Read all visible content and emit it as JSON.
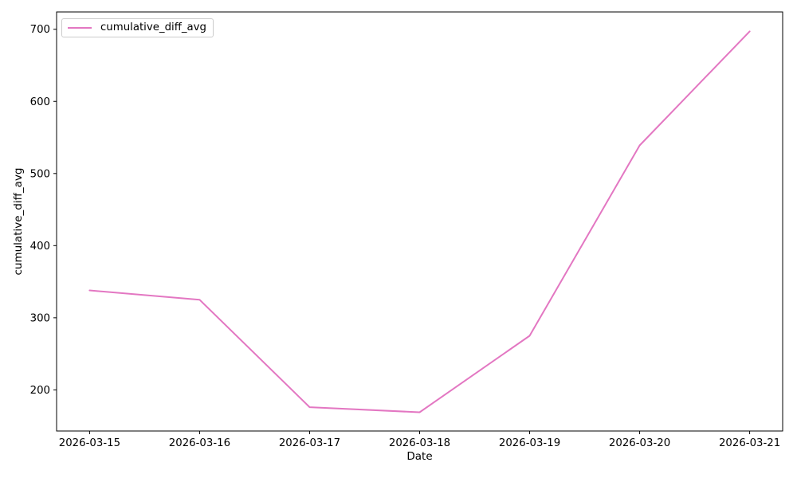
{
  "chart_data": {
    "type": "line",
    "title": "",
    "xlabel": "Date",
    "ylabel": "cumulative_diff_avg",
    "x": [
      "2026-03-15",
      "2026-03-16",
      "2026-03-17",
      "2026-03-18",
      "2026-03-19",
      "2026-03-20",
      "2026-03-21"
    ],
    "series": [
      {
        "name": "cumulative_diff_avg",
        "color": "#e377c2",
        "values": [
          338,
          325,
          176,
          169,
          275,
          539,
          697
        ]
      }
    ],
    "yticks": [
      200,
      300,
      400,
      500,
      600,
      700
    ],
    "ylim": [
      143,
      724
    ],
    "xlim_days": [
      -0.3,
      6.3
    ],
    "grid": false,
    "legend_position": "upper left",
    "frame_color": "#000000",
    "background": "#ffffff"
  }
}
